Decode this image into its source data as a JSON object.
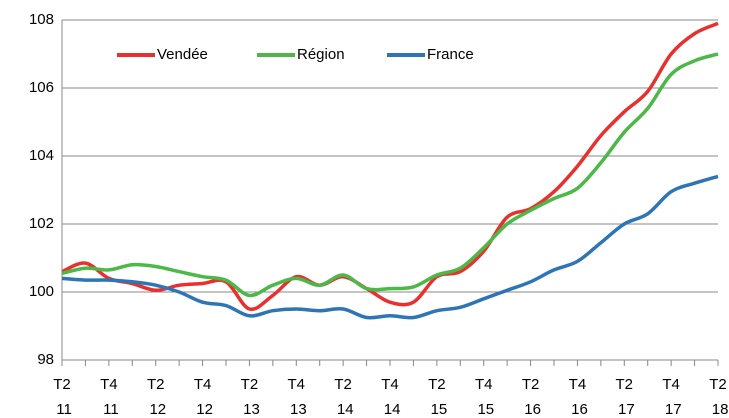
{
  "chart_data": {
    "type": "line",
    "categories": [
      "T2 11",
      null,
      "T4 11",
      null,
      "T2 12",
      null,
      "T4 12",
      null,
      "T2 13",
      null,
      "T4 13",
      null,
      "T2 14",
      null,
      "T4 14",
      null,
      "T2 15",
      null,
      "T4 15",
      null,
      "T2 16",
      null,
      "T4 16",
      null,
      "T2 17",
      null,
      "T4 17",
      null,
      "T2 18"
    ],
    "series": [
      {
        "name": "Vendée",
        "color": "#e8312f",
        "values": [
          100.6,
          100.85,
          100.4,
          100.25,
          100.05,
          100.2,
          100.25,
          100.3,
          99.5,
          99.9,
          100.45,
          100.2,
          100.45,
          100.1,
          99.7,
          99.7,
          100.45,
          100.6,
          101.2,
          102.2,
          102.45,
          102.95,
          103.7,
          104.6,
          105.3,
          105.9,
          107.0,
          107.6,
          107.9
        ]
      },
      {
        "name": "Région",
        "color": "#4cb848",
        "values": [
          100.55,
          100.7,
          100.65,
          100.8,
          100.75,
          100.6,
          100.45,
          100.35,
          99.9,
          100.2,
          100.4,
          100.2,
          100.5,
          100.1,
          100.1,
          100.15,
          100.5,
          100.7,
          101.3,
          102.0,
          102.4,
          102.75,
          103.05,
          103.8,
          104.7,
          105.4,
          106.4,
          106.8,
          107.0
        ]
      },
      {
        "name": "France",
        "color": "#2e75b6",
        "values": [
          100.4,
          100.35,
          100.35,
          100.3,
          100.2,
          100.0,
          99.7,
          99.6,
          99.3,
          99.45,
          99.5,
          99.45,
          99.5,
          99.25,
          99.3,
          99.25,
          99.45,
          99.55,
          99.8,
          100.05,
          100.3,
          100.65,
          100.9,
          101.45,
          102.0,
          102.3,
          102.95,
          103.2,
          103.4
        ]
      }
    ],
    "ylim": [
      98,
      108
    ],
    "yticks": [
      98,
      100,
      102,
      104,
      106,
      108
    ],
    "grid": true,
    "legend": "top-left"
  }
}
